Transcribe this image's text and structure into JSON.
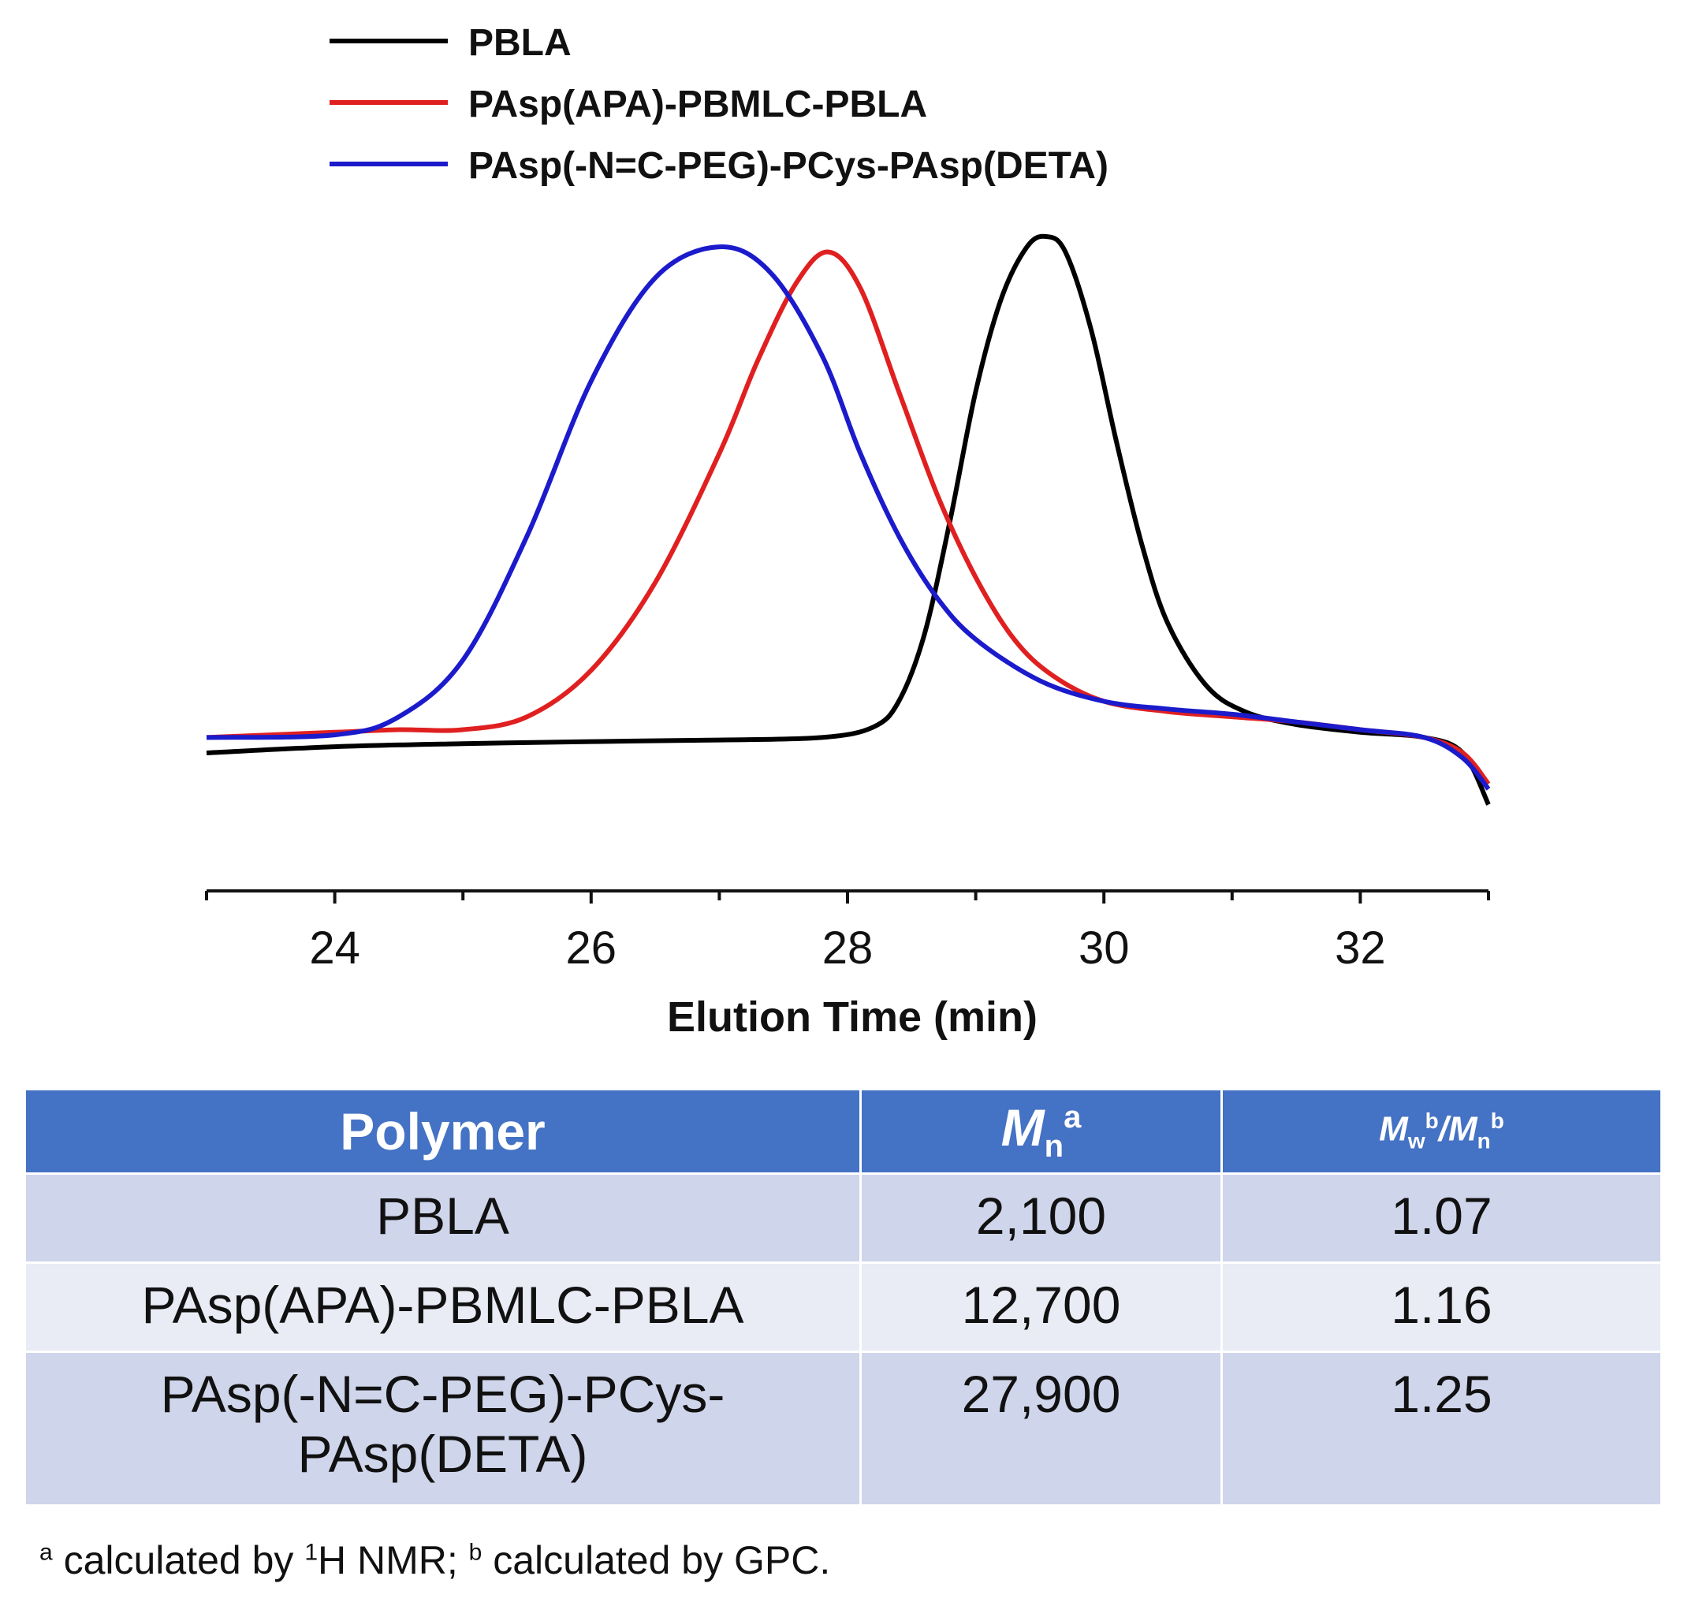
{
  "chart_data": {
    "type": "line",
    "title": "",
    "xlabel": "Elution Time (min)",
    "ylabel": "",
    "xlim": [
      23,
      33
    ],
    "ylim": [
      -0.12,
      1.0
    ],
    "xticks": [
      24,
      26,
      28,
      30,
      32
    ],
    "grid": false,
    "legend_position": "top-left",
    "series": [
      {
        "name": "PBLA",
        "color": "#000000",
        "x": [
          23.0,
          24.0,
          25.0,
          26.0,
          27.0,
          27.8,
          28.2,
          28.4,
          28.6,
          28.8,
          29.0,
          29.2,
          29.4,
          29.55,
          29.7,
          29.9,
          30.1,
          30.3,
          30.5,
          30.8,
          31.1,
          31.5,
          32.0,
          32.5,
          32.8,
          33.0
        ],
        "y": [
          0.0,
          0.012,
          0.018,
          0.022,
          0.025,
          0.03,
          0.05,
          0.1,
          0.23,
          0.45,
          0.7,
          0.88,
          0.98,
          1.0,
          0.97,
          0.82,
          0.6,
          0.4,
          0.25,
          0.13,
          0.08,
          0.055,
          0.04,
          0.03,
          0.0,
          -0.1
        ]
      },
      {
        "name": "PAsp(APA)-PBMLC-PBLA",
        "color": "#e02020",
        "x": [
          23.0,
          24.0,
          24.5,
          25.0,
          25.5,
          26.0,
          26.5,
          27.0,
          27.3,
          27.6,
          27.85,
          28.1,
          28.4,
          28.7,
          29.0,
          29.3,
          29.6,
          30.0,
          30.5,
          31.0,
          31.5,
          32.0,
          32.5,
          32.8,
          33.0
        ],
        "y": [
          0.03,
          0.04,
          0.045,
          0.045,
          0.07,
          0.16,
          0.33,
          0.58,
          0.76,
          0.91,
          0.97,
          0.9,
          0.7,
          0.5,
          0.34,
          0.22,
          0.15,
          0.1,
          0.08,
          0.07,
          0.06,
          0.045,
          0.03,
          0.0,
          -0.06
        ]
      },
      {
        "name": "PAsp(-N=C-PEG)-PCys-PAsp(DETA)",
        "color": "#1b1bcc",
        "x": [
          23.0,
          24.0,
          24.5,
          25.0,
          25.5,
          26.0,
          26.5,
          27.0,
          27.4,
          27.8,
          28.1,
          28.4,
          28.7,
          29.0,
          29.5,
          30.0,
          30.5,
          31.0,
          31.5,
          32.0,
          32.5,
          32.8,
          33.0
        ],
        "y": [
          0.03,
          0.035,
          0.07,
          0.18,
          0.42,
          0.72,
          0.92,
          0.98,
          0.93,
          0.77,
          0.58,
          0.42,
          0.3,
          0.22,
          0.14,
          0.1,
          0.085,
          0.075,
          0.06,
          0.045,
          0.03,
          -0.01,
          -0.07
        ]
      }
    ]
  },
  "table": {
    "headers": {
      "polymer": "Polymer",
      "mn_symbol": "M",
      "mn_sub": "n",
      "mn_sup": "a",
      "mw_symbol": "M",
      "mw_sub": "w",
      "mw_sup": "b",
      "slash": "/",
      "mn2_symbol": "M",
      "mn2_sub": "n",
      "mn2_sup": "b"
    },
    "rows": [
      {
        "polymer": "PBLA",
        "mn": "2,100",
        "pdi": "1.07"
      },
      {
        "polymer": "PAsp(APA)-PBMLC-PBLA",
        "mn": "12,700",
        "pdi": "1.16"
      },
      {
        "polymer_line1": "PAsp(-N=C-PEG)-PCys-",
        "polymer_line2": "PAsp(DETA)",
        "mn": "27,900",
        "pdi": "1.25"
      }
    ]
  },
  "footnote": {
    "a_mark": "a",
    "a_text_pre": " calculated by ",
    "a_iso": "1",
    "a_text_post": "H NMR; ",
    "b_mark": "b",
    "b_text": " calculated by GPC."
  }
}
